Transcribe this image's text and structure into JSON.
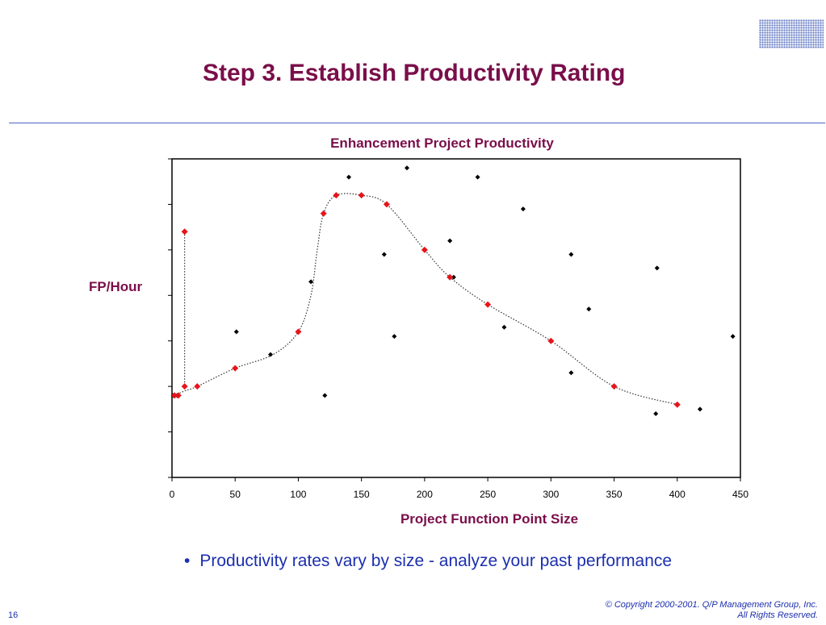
{
  "slide": {
    "title": "Step 3. Establish Productivity Rating",
    "bullet": "Productivity rates vary by size - analyze your past performance",
    "page_number": "16",
    "copyright_line1": "© Copyright 2000-2001.  Q/P Management Group, Inc.",
    "copyright_line2": "All Rights Reserved."
  },
  "colors": {
    "title": "#7a0e4a",
    "text": "#1c2fae",
    "rule": "#4e64c0",
    "trend_points": "#e8141b",
    "scatter_points": "#000000"
  },
  "chart_data": {
    "type": "scatter",
    "title": "Enhancement Project Productivity",
    "xlabel": "Project Function Point Size",
    "ylabel": "FP/Hour",
    "xlim": [
      0,
      450
    ],
    "ylim": [
      0,
      7
    ],
    "x_ticks": [
      0,
      50,
      100,
      150,
      200,
      250,
      300,
      350,
      400,
      450
    ],
    "y_tick_labels_shown": false,
    "grid": false,
    "legend": "none",
    "series": [
      {
        "marker": "diamond",
        "color": "#000000",
        "points": [
          [
            1,
            1.8
          ],
          [
            4,
            1.8
          ],
          [
            10,
            2.0
          ],
          [
            51,
            3.2
          ],
          [
            78,
            2.7
          ],
          [
            110,
            4.3
          ],
          [
            121,
            1.8
          ],
          [
            140,
            6.6
          ],
          [
            168,
            4.9
          ],
          [
            176,
            3.1
          ],
          [
            186,
            6.8
          ],
          [
            220,
            5.2
          ],
          [
            223,
            4.4
          ],
          [
            242,
            6.6
          ],
          [
            263,
            3.3
          ],
          [
            278,
            5.9
          ],
          [
            316,
            4.9
          ],
          [
            316,
            2.3
          ],
          [
            330,
            3.7
          ],
          [
            383,
            1.4
          ],
          [
            384,
            4.6
          ],
          [
            418,
            1.5
          ],
          [
            444,
            3.1
          ]
        ]
      },
      {
        "marker": "diamond",
        "color": "#e8141b",
        "points": [
          [
            2,
            1.8
          ],
          [
            5,
            1.8
          ],
          [
            10,
            5.4
          ],
          [
            10,
            2.0
          ],
          [
            20,
            2.0
          ],
          [
            50,
            2.4
          ],
          [
            100,
            3.2
          ],
          [
            120,
            5.8
          ],
          [
            130,
            6.2
          ],
          [
            150,
            6.2
          ],
          [
            170,
            6.0
          ],
          [
            200,
            5.0
          ],
          [
            220,
            4.4
          ],
          [
            250,
            3.8
          ],
          [
            300,
            3.0
          ],
          [
            350,
            2.0
          ],
          [
            400,
            1.6
          ]
        ]
      }
    ],
    "trend_line": {
      "style": "dotted",
      "points": [
        [
          2,
          1.8
        ],
        [
          10,
          1.9
        ],
        [
          20,
          2.0
        ],
        [
          50,
          2.4
        ],
        [
          80,
          2.7
        ],
        [
          100,
          3.2
        ],
        [
          110,
          4.0
        ],
        [
          115,
          5.0
        ],
        [
          120,
          5.8
        ],
        [
          130,
          6.2
        ],
        [
          150,
          6.2
        ],
        [
          170,
          6.0
        ],
        [
          200,
          5.0
        ],
        [
          220,
          4.4
        ],
        [
          250,
          3.8
        ],
        [
          300,
          3.0
        ],
        [
          350,
          2.0
        ],
        [
          400,
          1.6
        ]
      ],
      "outlier_link": [
        [
          10,
          5.4
        ],
        [
          10,
          2.0
        ]
      ]
    }
  }
}
